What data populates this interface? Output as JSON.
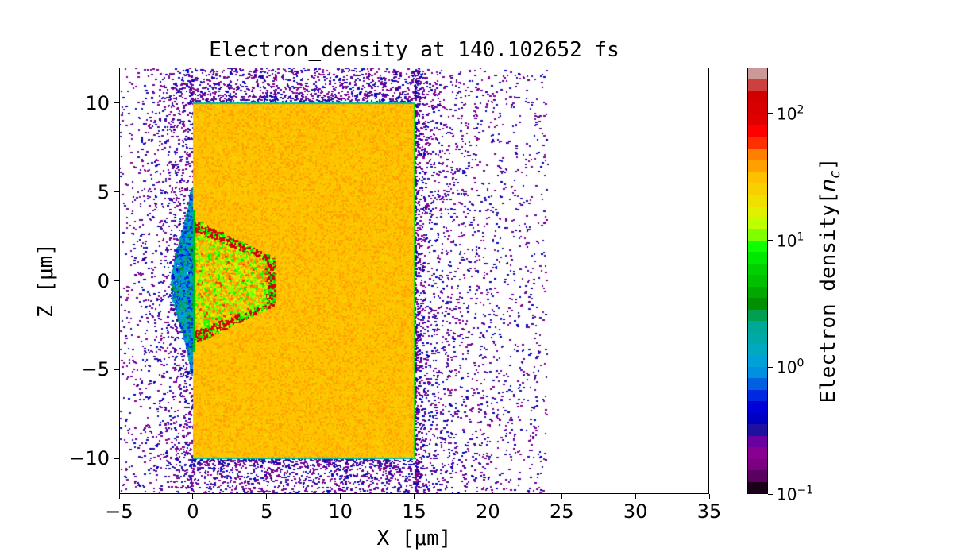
{
  "chart_data": {
    "type": "heatmap",
    "title": "Electron_density at 140.102652 fs",
    "xlabel": "X [μm]",
    "ylabel": "Z [μm]",
    "xlim": [
      -5,
      35
    ],
    "ylim": [
      -12,
      12
    ],
    "x_ticks": [
      "−5",
      "0",
      "5",
      "10",
      "15",
      "20",
      "25",
      "30",
      "35"
    ],
    "x_tick_values": [
      -5,
      0,
      5,
      10,
      15,
      20,
      25,
      30,
      35
    ],
    "y_ticks": [
      "−10",
      "−5",
      "0",
      "5",
      "10"
    ],
    "y_tick_values": [
      -10,
      -5,
      0,
      5,
      10
    ],
    "colorbar": {
      "label": "Electron_density[n_c]",
      "label_main": "Electron_density[",
      "label_sub": "c",
      "label_n": "n",
      "label_end": "]",
      "scale": "log",
      "range": [
        0.1,
        230
      ],
      "ticks": [
        {
          "value": 0.1,
          "base": "10",
          "exp": "−1"
        },
        {
          "value": 1,
          "base": "10",
          "exp": "0"
        },
        {
          "value": 10,
          "base": "10",
          "exp": "1"
        },
        {
          "value": 100,
          "base": "10",
          "exp": "2"
        }
      ],
      "colors": [
        "#1a0018",
        "#5a0060",
        "#7a0080",
        "#880090",
        "#6a00a0",
        "#2010a0",
        "#0000c0",
        "#0000d8",
        "#0028e0",
        "#0060e0",
        "#0090e0",
        "#00a0d8",
        "#00a8c0",
        "#00a8a8",
        "#00a898",
        "#00a050",
        "#009000",
        "#00a800",
        "#00c000",
        "#00d000",
        "#00e800",
        "#10ff00",
        "#80ff00",
        "#c0ff00",
        "#e0f000",
        "#f0e000",
        "#f8d000",
        "#ffc000",
        "#ffa000",
        "#ff8000",
        "#ff3000",
        "#ff0000",
        "#e00000",
        "#d80000",
        "#d00000",
        "#cc4040",
        "#cc9999"
      ]
    },
    "regions": [
      {
        "name": "target",
        "x": [
          0,
          15
        ],
        "z": [
          -10,
          10
        ],
        "density": 30
      },
      {
        "name": "channel",
        "x": [
          0,
          5.5
        ],
        "z_half_width_at_x0": 3.5,
        "z_half_width_at_tip": 1.3,
        "density_range": [
          5,
          100
        ]
      },
      {
        "name": "front plasma",
        "x": [
          -1.5,
          0
        ],
        "z": [
          -5,
          5
        ],
        "density_range": [
          0.5,
          3
        ]
      },
      {
        "name": "sparse electrons",
        "x": [
          -5,
          24
        ],
        "z": [
          -12,
          12
        ],
        "density_range": [
          0.15,
          0.4
        ]
      }
    ]
  }
}
